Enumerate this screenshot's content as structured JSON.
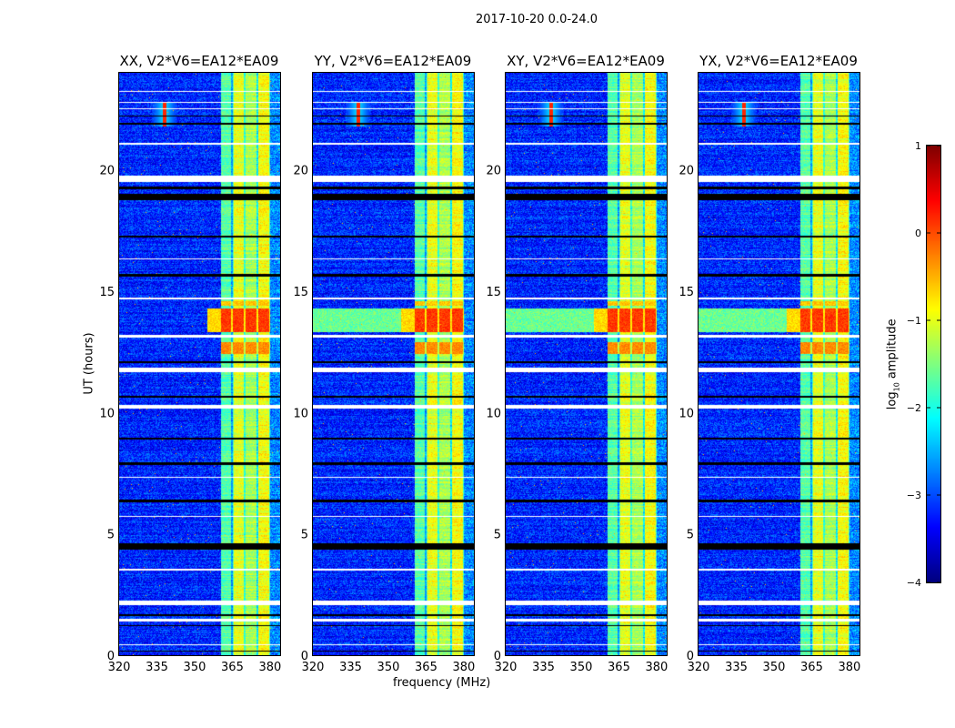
{
  "chart_data": {
    "type": "heatmap",
    "title": "2017-10-20 0.0-24.0",
    "xlabel": "frequency (MHz)",
    "ylabel": "UT (hours)",
    "xlim": [
      320,
      384
    ],
    "ylim": [
      0,
      24
    ],
    "xticks": [
      320,
      335,
      350,
      365,
      380
    ],
    "yticks": [
      0,
      5,
      10,
      15,
      20
    ],
    "panels": [
      {
        "title": "XX, V2*V6=EA12*EA09"
      },
      {
        "title": "YY, V2*V6=EA12*EA09"
      },
      {
        "title": "XY, V2*V6=EA12*EA09"
      },
      {
        "title": "YX, V2*V6=EA12*EA09"
      }
    ],
    "colorbar": {
      "label_prefix": "log",
      "label_sub": "10",
      "label_suffix": " amplitude",
      "range": [
        -4,
        1
      ],
      "ticks": [
        1,
        0,
        -1,
        -2,
        -3,
        -4
      ],
      "tick_labels": [
        "1",
        "0",
        "−1",
        "−2",
        "−3",
        "−4"
      ],
      "colormap": "jet"
    },
    "background_level": -3.2,
    "band": {
      "freq_range": [
        360.4,
        380
      ],
      "channel_gaps": [
        365,
        370,
        375,
        380
      ],
      "levels": [
        -1.7,
        -1.0,
        -1.3,
        -0.9
      ]
    },
    "strong_rfi_time": [
      [
        13.3,
        14.3,
        0.1
      ],
      [
        12.4,
        12.9,
        -0.3
      ],
      [
        14.4,
        14.6,
        -0.6
      ]
    ],
    "rfi_spot": {
      "freq": 338,
      "time_range": [
        21.8,
        22.8
      ],
      "level": 0.2
    },
    "flagged_white_hours": [
      [
        19.5,
        19.75
      ],
      [
        14.65,
        14.75
      ],
      [
        13.1,
        13.2
      ],
      [
        11.65,
        11.85
      ],
      [
        10.15,
        10.3
      ],
      [
        2.05,
        2.25
      ],
      [
        1.4,
        1.5
      ],
      [
        0.4,
        0.45
      ],
      [
        22.5,
        22.55
      ],
      [
        22.75,
        22.8
      ],
      [
        23.2,
        23.25
      ],
      [
        21.05,
        21.1
      ],
      [
        16.3,
        16.35
      ],
      [
        7.3,
        7.35
      ],
      [
        5.7,
        5.75
      ],
      [
        3.5,
        3.55
      ]
    ],
    "zero_black_hours": [
      [
        18.75,
        19.0
      ],
      [
        19.2,
        19.3
      ],
      [
        21.85,
        21.95
      ],
      [
        15.6,
        15.7
      ],
      [
        17.2,
        17.3
      ],
      [
        6.3,
        6.4
      ],
      [
        7.85,
        7.95
      ],
      [
        4.35,
        4.6
      ],
      [
        1.6,
        1.7
      ],
      [
        1.2,
        1.25
      ],
      [
        10.6,
        10.7
      ],
      [
        22.2,
        22.25
      ],
      [
        0.15,
        0.2
      ],
      [
        12.05,
        12.1
      ],
      [
        8.9,
        8.95
      ]
    ]
  }
}
